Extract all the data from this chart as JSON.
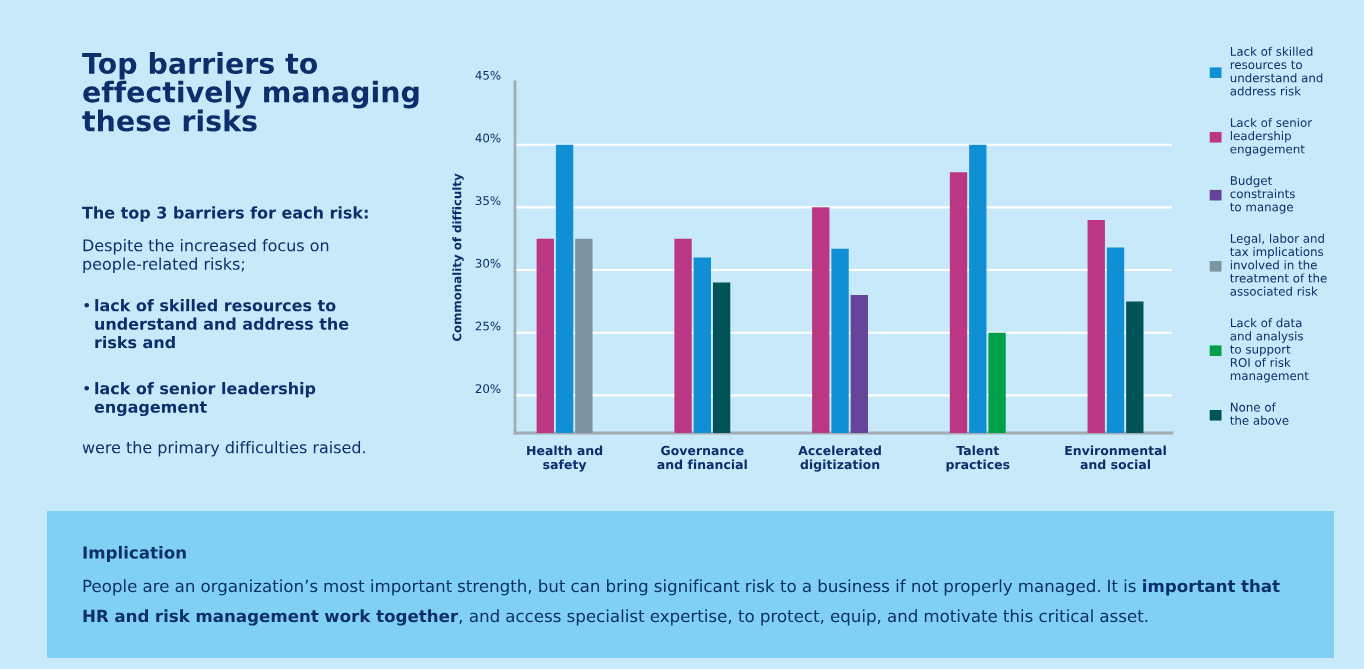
{
  "chart_data": {
    "type": "bar",
    "title": "Top barriers to\neffectively managing\nthese risks",
    "subtitle": "The top 3 barriers for each risk:",
    "ylabel": "Commonality of difficulty",
    "categories": [
      "Health and\nsafety",
      "Governance\nand financial",
      "Accelerated\ndigitization",
      "Talent\npractices",
      "Environmental\nand social"
    ],
    "series": [
      {
        "name": "Lack of skilled\nresources to\nunderstand and\naddress risk",
        "color": "#118fd5",
        "values": [
          40,
          31,
          31.7,
          40,
          31.8
        ]
      },
      {
        "name": "Lack of senior\nleadership\nengagement",
        "color": "#bb3784",
        "values": [
          32.5,
          32.5,
          35,
          37.8,
          34
        ]
      },
      {
        "name": "Budget\nconstraints\nto manage",
        "color": "#66449a",
        "values": [
          null,
          null,
          28,
          null,
          null
        ]
      },
      {
        "name": "Legal, labor and\ntax implications\ninvolved in the\ntreatment of the\nassociated risk",
        "color": "#7d93a0",
        "values": [
          32.5,
          null,
          null,
          null,
          null
        ]
      },
      {
        "name": "Lack of data\nand analysis\nto support\nROI of risk\nmanagement",
        "color": "#00a04a",
        "values": [
          null,
          null,
          null,
          25,
          null
        ]
      },
      {
        "name": "None of\nthe above",
        "color": "#005458",
        "values": [
          null,
          29,
          null,
          null,
          27.5
        ]
      }
    ],
    "ylim": [
      17,
      45
    ],
    "yticks": [
      {
        "value": 20,
        "label": "20%"
      },
      {
        "value": 25,
        "label": "25%"
      },
      {
        "value": 30,
        "label": "30%"
      },
      {
        "value": 35,
        "label": "35%"
      },
      {
        "value": 40,
        "label": "40%"
      },
      {
        "value": 45,
        "label": "45%"
      }
    ],
    "grid": "y",
    "legend": "right",
    "annotations": [
      "Despite the increased focus on\npeople-related risks;",
      "• lack of skilled resources to\nunderstand and address the\nrisks and",
      "• lack of senior leadership\nengagement",
      "were the primary difficulties raised.",
      "Implication",
      "People are an organization’s most important strength, but can bring significant risk to a business if not properly managed. It is ",
      "important that HR and risk management work together",
      ", and access specialist expertise, to protect, equip, and motivate this critical asset."
    ]
  }
}
